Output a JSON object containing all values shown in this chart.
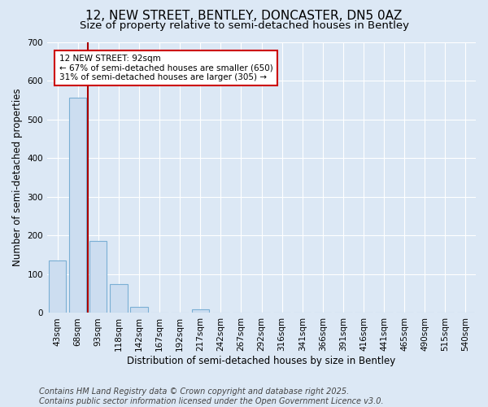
{
  "title_line1": "12, NEW STREET, BENTLEY, DONCASTER, DN5 0AZ",
  "title_line2": "Size of property relative to semi-detached houses in Bentley",
  "xlabel": "Distribution of semi-detached houses by size in Bentley",
  "ylabel": "Number of semi-detached properties",
  "categories": [
    "43sqm",
    "68sqm",
    "93sqm",
    "118sqm",
    "142sqm",
    "167sqm",
    "192sqm",
    "217sqm",
    "242sqm",
    "267sqm",
    "292sqm",
    "316sqm",
    "341sqm",
    "366sqm",
    "391sqm",
    "416sqm",
    "441sqm",
    "465sqm",
    "490sqm",
    "515sqm",
    "540sqm"
  ],
  "values": [
    135,
    555,
    185,
    75,
    15,
    0,
    0,
    10,
    0,
    0,
    0,
    0,
    0,
    0,
    0,
    0,
    0,
    0,
    0,
    0,
    0
  ],
  "bar_color": "#ccddf0",
  "bar_edge_color": "#7aafd4",
  "background_color": "#dce8f5",
  "grid_color": "#ffffff",
  "vline_x": 1.5,
  "vline_color": "#aa0000",
  "annotation_box_text": "12 NEW STREET: 92sqm\n← 67% of semi-detached houses are smaller (650)\n31% of semi-detached houses are larger (305) →",
  "annotation_box_color": "#cc0000",
  "ylim": [
    0,
    700
  ],
  "yticks": [
    0,
    100,
    200,
    300,
    400,
    500,
    600,
    700
  ],
  "footer_line1": "Contains HM Land Registry data © Crown copyright and database right 2025.",
  "footer_line2": "Contains public sector information licensed under the Open Government Licence v3.0.",
  "title_fontsize": 11,
  "subtitle_fontsize": 9.5,
  "axis_label_fontsize": 8.5,
  "tick_fontsize": 7.5,
  "footer_fontsize": 7,
  "ann_fontsize": 7.5
}
